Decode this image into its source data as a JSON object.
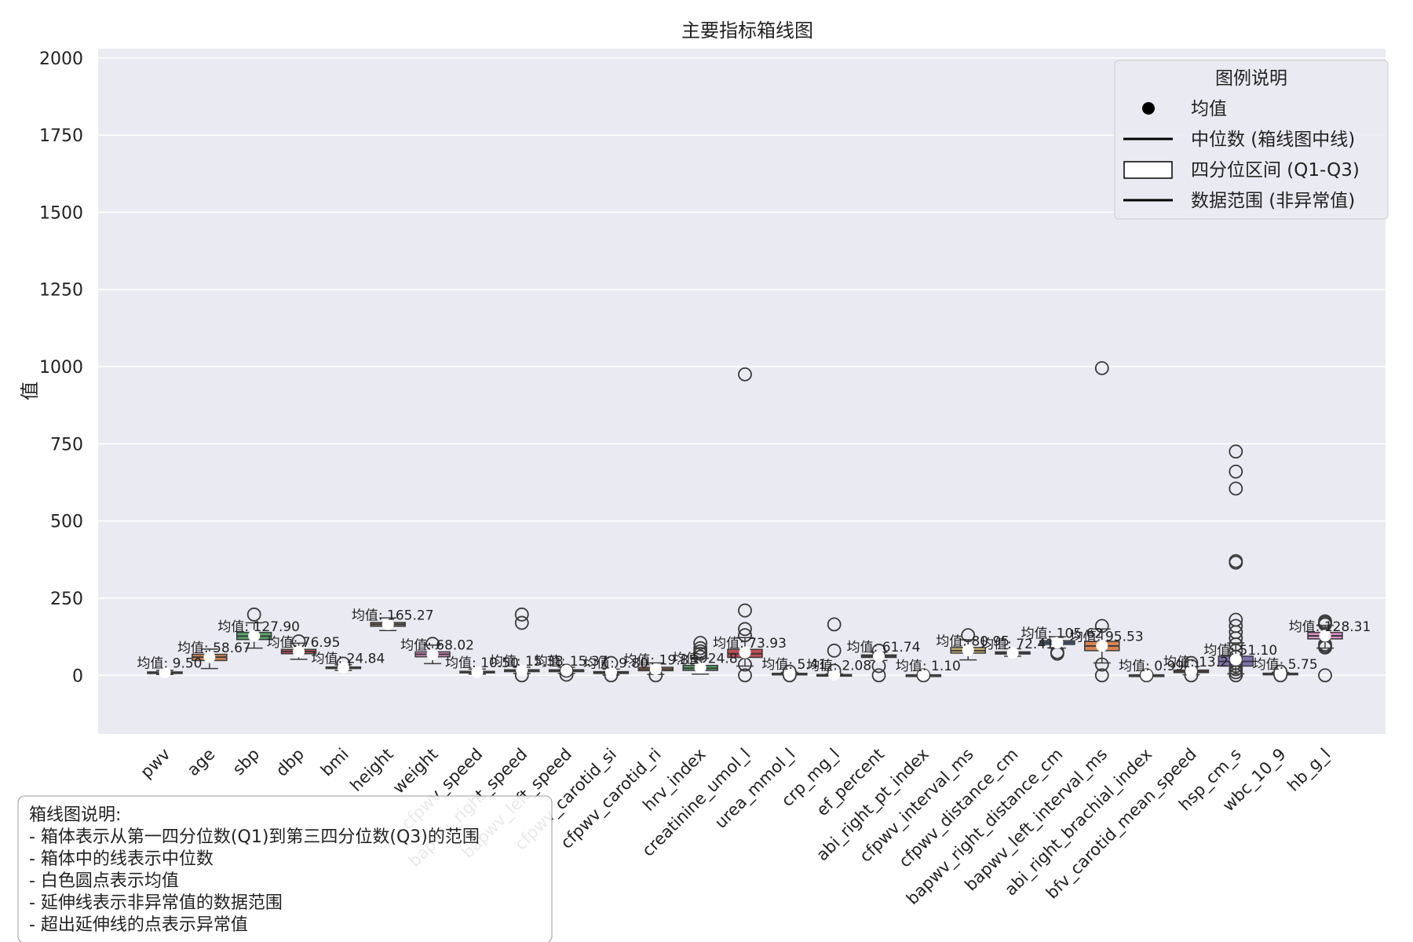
{
  "chart_data": {
    "type": "boxplot",
    "title": "主要指标箱线图",
    "ylabel": "值",
    "xlabel": "",
    "ylim": [
      -190,
      2030
    ],
    "yticks": [
      0,
      250,
      500,
      750,
      1000,
      1250,
      1500,
      1750,
      2000
    ],
    "grid": true,
    "legend": {
      "title": "图例说明",
      "position": "top-right",
      "entries": [
        {
          "marker": "dot",
          "label": "均值"
        },
        {
          "marker": "line",
          "label": "中位数 (箱线图中线)"
        },
        {
          "marker": "box",
          "label": "四分位区间 (Q1-Q3)"
        },
        {
          "marker": "line",
          "label": "数据范围 (非异常值)"
        }
      ]
    },
    "note": {
      "position": "bottom-left",
      "lines": [
        "箱线图说明:",
        "- 箱体表示从第一四分位数(Q1)到第三四分位数(Q3)的范围",
        "- 箱体中的线表示中位数",
        "- 白色圆点表示均值",
        "- 延伸线表示非异常值的数据范围",
        "- 超出延伸线的点表示异常值"
      ]
    },
    "series": [
      {
        "category": "pwv",
        "color": "#4c72b0",
        "q1": 7,
        "median": 9,
        "q3": 11,
        "whisker_low": 3,
        "whisker_high": 16,
        "mean": 9.5,
        "mean_label": "均值: 9.50",
        "outliers": []
      },
      {
        "category": "age",
        "color": "#dd8452",
        "q1": 48,
        "median": 59,
        "q3": 68,
        "whisker_low": 22,
        "whisker_high": 85,
        "mean": 58.67,
        "mean_label": "均值: 58.67",
        "outliers": []
      },
      {
        "category": "sbp",
        "color": "#55a868",
        "q1": 116,
        "median": 127,
        "q3": 139,
        "whisker_low": 88,
        "whisker_high": 170,
        "mean": 127.9,
        "mean_label": "均值: 127.90",
        "outliers": [
          197
        ]
      },
      {
        "category": "dbp",
        "color": "#c44e52",
        "q1": 70,
        "median": 77,
        "q3": 84,
        "whisker_low": 52,
        "whisker_high": 104,
        "mean": 76.95,
        "mean_label": "均值: 76.95",
        "outliers": [
          110
        ]
      },
      {
        "category": "bmi",
        "color": "#8172b3",
        "q1": 22,
        "median": 24.5,
        "q3": 27,
        "whisker_low": 16,
        "whisker_high": 34,
        "mean": 24.84,
        "mean_label": "均值: 24.84",
        "outliers": [
          38
        ]
      },
      {
        "category": "height",
        "color": "#937860",
        "q1": 159,
        "median": 165,
        "q3": 171,
        "whisker_low": 145,
        "whisker_high": 186,
        "mean": 165.27,
        "mean_label": "均值: 165.27",
        "outliers": []
      },
      {
        "category": "weight",
        "color": "#da8bc3",
        "q1": 60,
        "median": 68,
        "q3": 76,
        "whisker_low": 38,
        "whisker_high": 98,
        "mean": 68.02,
        "mean_label": "均值: 68.02",
        "outliers": [
          102
        ]
      },
      {
        "category": "cfpwv_speed",
        "color": "#8c8c8c",
        "q1": 8,
        "median": 10,
        "q3": 13,
        "whisker_low": 4,
        "whisker_high": 20,
        "mean": 10.5,
        "mean_label": "均值: 10.50",
        "outliers": []
      },
      {
        "category": "bapwv_right_speed",
        "color": "#ccb974",
        "q1": 12,
        "median": 15,
        "q3": 18,
        "whisker_low": 6,
        "whisker_high": 26,
        "mean": 15.38,
        "mean_label": "均值: 15.38",
        "outliers": [
          0,
          170,
          197
        ]
      },
      {
        "category": "bapwv_left_speed",
        "color": "#64b5cd",
        "q1": 12,
        "median": 15,
        "q3": 18,
        "whisker_low": 6,
        "whisker_high": 26,
        "mean": 15.37,
        "mean_label": "均值: 15.37",
        "outliers": [
          2,
          15
        ]
      },
      {
        "category": "cfpwv_carotid_si",
        "color": "#4c72b0",
        "q1": 6,
        "median": 9,
        "q3": 12,
        "whisker_low": 1,
        "whisker_high": 20,
        "mean": 9.8,
        "mean_label": "均值: 9.80",
        "outliers": [
          0,
          40
        ]
      },
      {
        "category": "cfpwv_carotid_ri",
        "color": "#dd8452",
        "q1": 15,
        "median": 20,
        "q3": 26,
        "whisker_low": 3,
        "whisker_high": 40,
        "mean": 19.85,
        "mean_label": "均值: 19.85",
        "outliers": [
          0
        ]
      },
      {
        "category": "hrv_index",
        "color": "#55a868",
        "q1": 16,
        "median": 23,
        "q3": 32,
        "whisker_low": 4,
        "whisker_high": 55,
        "mean": 24.8,
        "mean_label": "均值: 24.8",
        "outliers": [
          60,
          70,
          78,
          88,
          105
        ]
      },
      {
        "category": "creatinine_umol_l",
        "color": "#c44e52",
        "q1": 58,
        "median": 70,
        "q3": 84,
        "whisker_low": 30,
        "whisker_high": 122,
        "mean": 73.93,
        "mean_label": "均值: 73.93",
        "outliers": [
          0,
          35,
          130,
          150,
          210,
          975
        ]
      },
      {
        "category": "urea_mmol_l",
        "color": "#8172b3",
        "q1": 4,
        "median": 5,
        "q3": 6.5,
        "whisker_low": 2,
        "whisker_high": 10,
        "mean": 5.41,
        "mean_label": "均值: 5.41",
        "outliers": [
          0,
          12
        ]
      },
      {
        "category": "crp_mg_l",
        "color": "#937860",
        "q1": 0.5,
        "median": 1.2,
        "q3": 2.5,
        "whisker_low": 0,
        "whisker_high": 5,
        "mean": 2.08,
        "mean_label": "均值: 2.08",
        "outliers": [
          15,
          80,
          165
        ]
      },
      {
        "category": "ef_percent",
        "color": "#da8bc3",
        "q1": 58,
        "median": 62,
        "q3": 66,
        "whisker_low": 48,
        "whisker_high": 75,
        "mean": 61.74,
        "mean_label": "均值: 61.74",
        "outliers": [
          0,
          30,
          80
        ]
      },
      {
        "category": "abi_right_pt_index",
        "color": "#8c8c8c",
        "q1": 1.0,
        "median": 1.1,
        "q3": 1.2,
        "whisker_low": 0.8,
        "whisker_high": 1.4,
        "mean": 1.1,
        "mean_label": "均值: 1.10",
        "outliers": [
          0
        ]
      },
      {
        "category": "cfpwv_interval_ms",
        "color": "#ccb974",
        "q1": 72,
        "median": 80,
        "q3": 90,
        "whisker_low": 50,
        "whisker_high": 115,
        "mean": 80.95,
        "mean_label": "均值: 80.95",
        "outliers": [
          130
        ]
      },
      {
        "category": "cfpwv_distance_cm",
        "color": "#64b5cd",
        "q1": 69,
        "median": 72,
        "q3": 76,
        "whisker_low": 62,
        "whisker_high": 86,
        "mean": 72.41,
        "mean_label": "均值: 72.41",
        "outliers": []
      },
      {
        "category": "bapwv_right_distance_cm",
        "color": "#4c72b0",
        "q1": 100,
        "median": 106,
        "q3": 112,
        "whisker_low": 88,
        "whisker_high": 125,
        "mean": 105.62,
        "mean_label": "均值: 105.62",
        "outliers": [
          70,
          75
        ]
      },
      {
        "category": "bapwv_left_interval_ms",
        "color": "#dd8452",
        "q1": 80,
        "median": 95,
        "q3": 110,
        "whisker_low": 40,
        "whisker_high": 150,
        "mean": 95.53,
        "mean_label": "均值: 95.53",
        "outliers": [
          0,
          35,
          160,
          995
        ]
      },
      {
        "category": "abi_right_brachial_index",
        "color": "#55a868",
        "q1": 0.9,
        "median": 1.0,
        "q3": 1.1,
        "whisker_low": 0.7,
        "whisker_high": 1.3,
        "mean": 0.99,
        "mean_label": "均值: 0.99",
        "outliers": [
          0
        ]
      },
      {
        "category": "bfv_carotid_mean_speed",
        "color": "#c44e52",
        "q1": 9,
        "median": 12,
        "q3": 17,
        "whisker_low": 2,
        "whisker_high": 28,
        "mean": 13.2,
        "mean_label": "均值: 13.2",
        "outliers": [
          0,
          30,
          40
        ]
      },
      {
        "category": "hsp_cm_s",
        "color": "#8172b3",
        "q1": 30,
        "median": 45,
        "q3": 62,
        "whisker_low": 5,
        "whisker_high": 105,
        "mean": 51.1,
        "mean_label": "均值: 51.10",
        "outliers": [
          0,
          10,
          20,
          30,
          40,
          60,
          80,
          100,
          120,
          140,
          160,
          180,
          365,
          370,
          605,
          660,
          725
        ]
      },
      {
        "category": "wbc_10_9",
        "color": "#937860",
        "q1": 4.5,
        "median": 5.6,
        "q3": 6.8,
        "whisker_low": 2,
        "whisker_high": 10,
        "mean": 5.75,
        "mean_label": "均值: 5.75",
        "outliers": [
          0,
          12
        ]
      },
      {
        "category": "hb_g_l",
        "color": "#da8bc3",
        "q1": 118,
        "median": 128,
        "q3": 139,
        "whisker_low": 88,
        "whisker_high": 162,
        "mean": 128.31,
        "mean_label": "均值: 128.31",
        "outliers": [
          0,
          90,
          95,
          100,
          165,
          170,
          175
        ]
      }
    ]
  }
}
